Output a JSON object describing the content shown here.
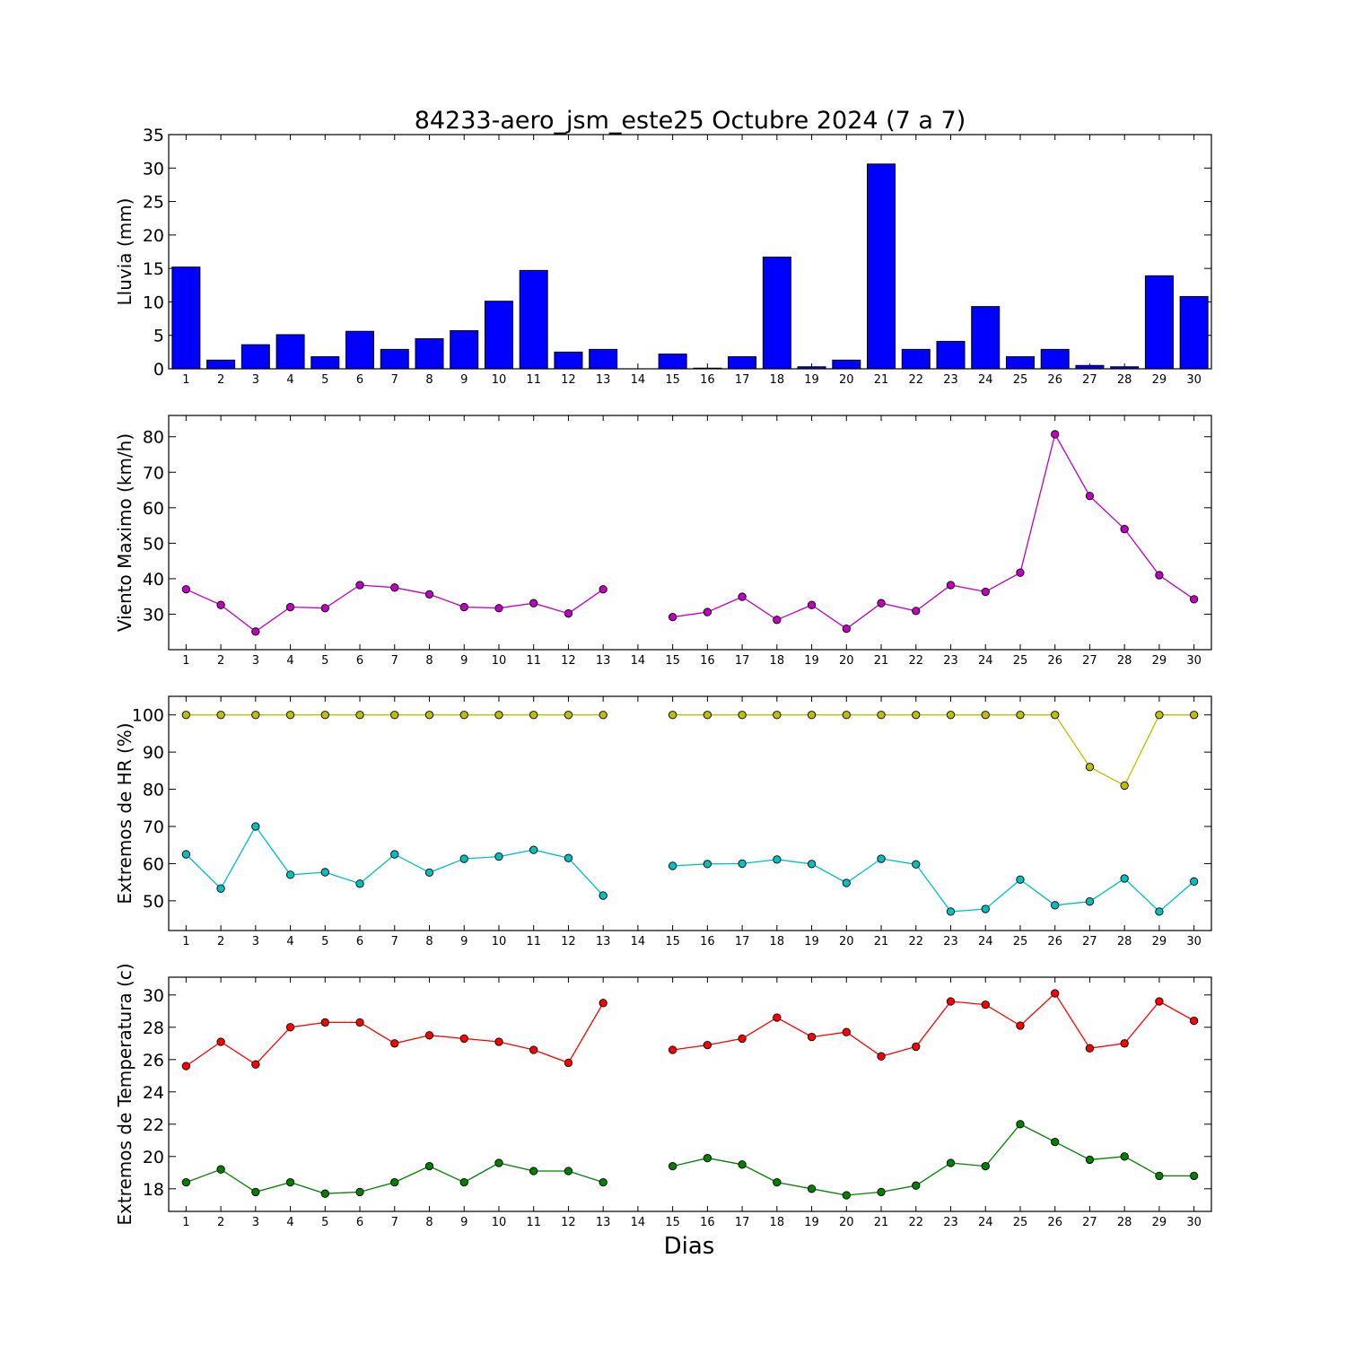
{
  "title": "84233-aero_jsm_este25 Octubre 2024  (7 a 7)",
  "xlabel": "Dias",
  "x": [
    1,
    2,
    3,
    4,
    5,
    6,
    7,
    8,
    9,
    10,
    11,
    12,
    13,
    14,
    15,
    16,
    17,
    18,
    19,
    20,
    21,
    22,
    23,
    24,
    25,
    26,
    27,
    28,
    29,
    30
  ],
  "chart_data": [
    {
      "type": "bar",
      "ylabel": "Lluvia (mm)",
      "ylim": [
        0,
        35
      ],
      "yticks": [
        0,
        5,
        10,
        15,
        20,
        25,
        30,
        35
      ],
      "series": [
        {
          "color": "#0000ff",
          "values": [
            15.2,
            1.3,
            3.6,
            5.1,
            1.8,
            5.6,
            2.9,
            4.5,
            5.7,
            10.1,
            14.7,
            2.5,
            2.9,
            0,
            2.2,
            0.1,
            1.8,
            16.7,
            0.3,
            1.3,
            30.6,
            2.9,
            4.1,
            9.3,
            1.8,
            2.9,
            0.5,
            0.3,
            13.9,
            10.8
          ]
        }
      ]
    },
    {
      "type": "line",
      "ylabel": "Viento Maximo (km/h)",
      "ylim": [
        20,
        86
      ],
      "yticks": [
        30,
        40,
        50,
        60,
        70,
        80
      ],
      "series": [
        {
          "color": "#bf00bf",
          "values": [
            37,
            32.6,
            25.1,
            32,
            31.7,
            38.2,
            37.5,
            35.6,
            32,
            31.7,
            33.1,
            30.2,
            37,
            null,
            29.2,
            30.6,
            34.9,
            28.4,
            32.6,
            25.9,
            33.1,
            30.9,
            38.2,
            36.3,
            41.7,
            80.7,
            63.3,
            54,
            41,
            34.2
          ]
        }
      ]
    },
    {
      "type": "line",
      "ylabel": "Extremos de HR (%)",
      "ylim": [
        42,
        105
      ],
      "yticks": [
        50,
        60,
        70,
        80,
        90,
        100
      ],
      "series": [
        {
          "color": "#bfbf00",
          "values": [
            100,
            100,
            100,
            100,
            100,
            100,
            100,
            100,
            100,
            100,
            100,
            100,
            100,
            null,
            100,
            100,
            100,
            100,
            100,
            100,
            100,
            100,
            100,
            100,
            100,
            100,
            86,
            81,
            100,
            100
          ]
        },
        {
          "color": "#00bfbf",
          "values": [
            62.5,
            53.3,
            70,
            57,
            57.7,
            54.6,
            62.5,
            57.6,
            61.3,
            61.9,
            63.7,
            61.5,
            51.4,
            null,
            59.4,
            59.9,
            60,
            61.1,
            59.9,
            54.8,
            61.3,
            59.8,
            47.1,
            47.8,
            55.7,
            48.8,
            49.8,
            56,
            47.1,
            55.2
          ]
        }
      ]
    },
    {
      "type": "line",
      "ylabel": "Extremos de Temperatura (c)",
      "ylim": [
        16.6,
        31.1
      ],
      "yticks": [
        18,
        20,
        22,
        24,
        26,
        28,
        30
      ],
      "series": [
        {
          "color": "#ff0000",
          "values": [
            25.6,
            27.1,
            25.7,
            28,
            28.3,
            28.3,
            27,
            27.5,
            27.3,
            27.1,
            26.6,
            25.8,
            29.5,
            null,
            26.6,
            26.9,
            27.3,
            28.6,
            27.4,
            27.7,
            26.2,
            26.8,
            29.6,
            29.4,
            28.1,
            30.1,
            26.7,
            27,
            29.6,
            28.4
          ]
        },
        {
          "color": "#008000",
          "values": [
            18.4,
            19.2,
            17.8,
            18.4,
            17.7,
            17.8,
            18.4,
            19.4,
            18.4,
            19.6,
            19.1,
            19.1,
            18.4,
            null,
            19.4,
            19.9,
            19.5,
            18.4,
            18,
            17.6,
            17.8,
            18.2,
            19.6,
            19.4,
            22,
            20.9,
            19.8,
            20,
            18.8,
            18.8
          ]
        }
      ]
    }
  ]
}
